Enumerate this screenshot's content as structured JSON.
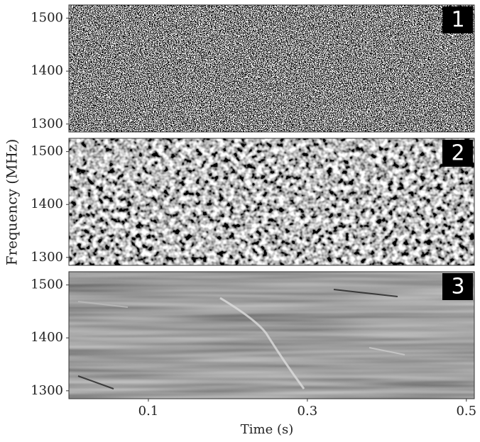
{
  "chart_data": {
    "type": "image",
    "ylabel": "Frequency (MHz)",
    "xlabel": "Time (s)",
    "xlim": [
      0,
      0.51
    ],
    "xticks": [
      0.1,
      0.3,
      0.5
    ],
    "panels": [
      {
        "label": "1",
        "ylim": [
          1285,
          1525
        ],
        "yticks": [
          1300,
          1400,
          1500
        ]
      },
      {
        "label": "2",
        "ylim": [
          1285,
          1525
        ],
        "yticks": [
          1300,
          1400,
          1500
        ]
      },
      {
        "label": "3",
        "ylim": [
          1285,
          1525
        ],
        "yticks": [
          1300,
          1400,
          1500
        ]
      }
    ]
  }
}
